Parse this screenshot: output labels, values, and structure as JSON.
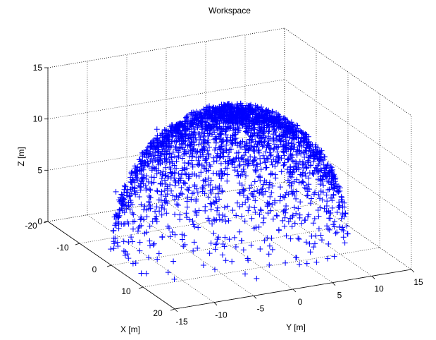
{
  "chart_data": {
    "type": "scatter3d",
    "title": "Workspace",
    "xlabel": "X [m]",
    "ylabel": "Y [m]",
    "zlabel": "Z [m]",
    "xlim": [
      -20,
      20
    ],
    "ylim": [
      -15,
      15
    ],
    "zlim": [
      0,
      15
    ],
    "xticks": [
      -20,
      -10,
      0,
      10,
      20
    ],
    "yticks": [
      -15,
      -10,
      -5,
      0,
      5,
      10,
      15
    ],
    "zticks": [
      0,
      5,
      10,
      15
    ],
    "grid": true,
    "box": true,
    "marker": "+",
    "marker_color": "#0000ff",
    "series": [
      {
        "point_count": 2600,
        "shape": "hemispherical cap, densest near the top",
        "center": [
          0,
          0
        ],
        "radius": 14,
        "z_range": [
          0,
          13.5
        ],
        "sample_points": [
          [
            0.0,
            0.0,
            13.4
          ],
          [
            3.0,
            2.0,
            13.0
          ],
          [
            -4.0,
            3.0,
            12.6
          ],
          [
            6.0,
            -5.0,
            11.5
          ],
          [
            -8.0,
            -6.0,
            10.4
          ],
          [
            9.0,
            9.0,
            8.0
          ],
          [
            -11.0,
            8.0,
            6.5
          ],
          [
            12.0,
            -4.0,
            6.0
          ],
          [
            -6.0,
            -12.0,
            5.5
          ],
          [
            10.0,
            -10.0,
            4.0
          ],
          [
            -13.0,
            -3.0,
            3.0
          ],
          [
            4.0,
            -13.0,
            2.0
          ],
          [
            13.0,
            5.0,
            1.5
          ],
          [
            -2.0,
            13.5,
            1.0
          ],
          [
            8.0,
            -11.0,
            0.5
          ]
        ]
      }
    ]
  }
}
